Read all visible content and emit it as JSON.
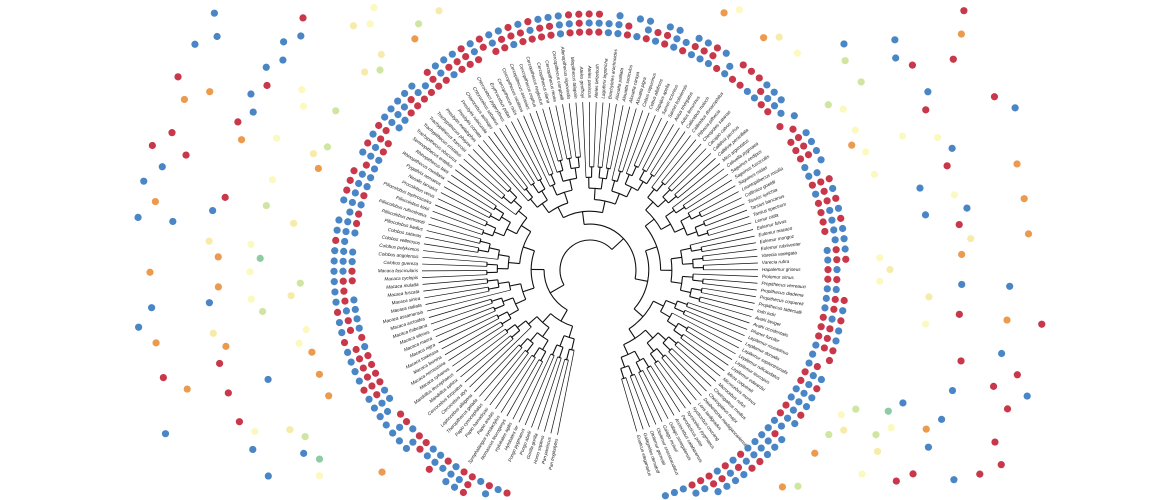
{
  "figure": {
    "title": "",
    "palette": {
      "red": "#c8374a",
      "blue": "#4a86c5",
      "orange": "#ec9a4e",
      "cream": "#fbf9bf",
      "lightgreen": "#cfe6a0",
      "green": "#8fcba3",
      "yellow": "#f7ebaa"
    }
  },
  "tree": {
    "tips": [
      {
        "label": "Pan troglodytes"
      },
      {
        "label": "Pan paniscus"
      },
      {
        "label": "Homo sapiens"
      },
      {
        "label": "Gorilla gorilla"
      },
      {
        "label": "Pongo abelii"
      },
      {
        "label": "Pongo pygmaeus"
      },
      {
        "label": "Hylobates lar"
      },
      {
        "label": "Hylobates agilis"
      },
      {
        "label": "Nomascus leucogenys"
      },
      {
        "label": "Symphalangus syndactylus"
      },
      {
        "label": "Papio anubis"
      },
      {
        "label": "Papio hamadryas"
      },
      {
        "label": "Papio cynocephalus"
      },
      {
        "label": "Theropithecus gelada"
      },
      {
        "label": "Lophocebus albigena"
      },
      {
        "label": "Cercocebus atys"
      },
      {
        "label": "Cercocebus torquatus"
      },
      {
        "label": "Mandrillus sphinx"
      },
      {
        "label": "Mandrillus leucophaeus"
      },
      {
        "label": "Macaca sylvanus"
      },
      {
        "label": "Macaca nemestrina"
      },
      {
        "label": "Macaca leonina"
      },
      {
        "label": "Macaca tonkeana"
      },
      {
        "label": "Macaca nigra"
      },
      {
        "label": "Macaca maura"
      },
      {
        "label": "Macaca silenus"
      },
      {
        "label": "Macaca thibetana"
      },
      {
        "label": "Macaca arctoides"
      },
      {
        "label": "Macaca assamensis"
      },
      {
        "label": "Macaca radiata"
      },
      {
        "label": "Macaca sinica"
      },
      {
        "label": "Macaca fuscata"
      },
      {
        "label": "Macaca mulatta"
      },
      {
        "label": "Macaca cyclopis"
      },
      {
        "label": "Macaca fascicularis"
      },
      {
        "label": "Colobus guereza"
      },
      {
        "label": "Colobus angolensis"
      },
      {
        "label": "Colobus polykomos"
      },
      {
        "label": "Colobus vellerosus"
      },
      {
        "label": "Colobus satanas"
      },
      {
        "label": "Piliocolobus badius"
      },
      {
        "label": "Piliocolobus pennantii"
      },
      {
        "label": "Piliocolobus rufomitratus"
      },
      {
        "label": "Piliocolobus kirkii"
      },
      {
        "label": "Piliocolobus tephrosceles"
      },
      {
        "label": "Procolobus verus"
      },
      {
        "label": "Nasalis larvatus"
      },
      {
        "label": "Pygathrix nemaeus"
      },
      {
        "label": "Rhinopithecus roxellana"
      },
      {
        "label": "Rhinopithecus bieti"
      },
      {
        "label": "Semnopithecus entellus"
      },
      {
        "label": "Trachypithecus obscurus"
      },
      {
        "label": "Trachypithecus cristatus"
      },
      {
        "label": "Trachypithecus francoisi"
      },
      {
        "label": "Trachypithecus phayrei"
      },
      {
        "label": "Presbytis melalophos"
      },
      {
        "label": "Presbytis comata"
      },
      {
        "label": "Presbytis rubicunda"
      },
      {
        "label": "Chlorocebus aethiops"
      },
      {
        "label": "Chlorocebus sabaeus"
      },
      {
        "label": "Chlorocebus pygerythrus"
      },
      {
        "label": "Erythrocebus patas"
      },
      {
        "label": "Cercopithecus mitis"
      },
      {
        "label": "Cercopithecus nictitans"
      },
      {
        "label": "Cercopithecus ascanius"
      },
      {
        "label": "Cercopithecus cephus"
      },
      {
        "label": "Cercopithecus neglectus"
      },
      {
        "label": "Cercopithecus diana"
      },
      {
        "label": "Cercopithecus mona"
      },
      {
        "label": "Cercopithecus campbelli"
      },
      {
        "label": "Allenopithecus nigroviridis"
      },
      {
        "label": "Miopithecus talapoin"
      },
      {
        "label": "Ateles geoffroyi"
      },
      {
        "label": "Ateles paniscus"
      },
      {
        "label": "Ateles belzebuth"
      },
      {
        "label": "Lagothrix lagotricha"
      },
      {
        "label": "Brachyteles arachnoides"
      },
      {
        "label": "Alouatta palliata"
      },
      {
        "label": "Alouatta seniculus"
      },
      {
        "label": "Alouatta caraya"
      },
      {
        "label": "Alouatta pigra"
      },
      {
        "label": "Cebus capucinus"
      },
      {
        "label": "Cebus albifrons"
      },
      {
        "label": "Sapajus apella"
      },
      {
        "label": "Saimiri sciureus"
      },
      {
        "label": "Saimiri boliviensis"
      },
      {
        "label": "Aotus trivirgatus"
      },
      {
        "label": "Aotus lemurinus"
      },
      {
        "label": "Callicebus moloch"
      },
      {
        "label": "Callicebus donacophilus"
      },
      {
        "label": "Pithecia pithecia"
      },
      {
        "label": "Chiropotes satanas"
      },
      {
        "label": "Cacajao calvus"
      },
      {
        "label": "Callithrix jacchus"
      },
      {
        "label": "Callithrix penicillata"
      },
      {
        "label": "Mico argentatus"
      },
      {
        "label": "Cebuella pygmaea"
      },
      {
        "label": "Saguinus oedipus"
      },
      {
        "label": "Saguinus fuscicollis"
      },
      {
        "label": "Saguinus midas"
      },
      {
        "label": "Leontopithecus rosalia"
      },
      {
        "label": "Callimico goeldii"
      },
      {
        "label": "Tarsius syrichta"
      },
      {
        "label": "Tarsius bancanus"
      },
      {
        "label": "Tarsius spectrum"
      },
      {
        "label": "Lemur catta"
      },
      {
        "label": "Eulemur fulvus"
      },
      {
        "label": "Eulemur macaco"
      },
      {
        "label": "Eulemur mongoz"
      },
      {
        "label": "Eulemur rubriventer"
      },
      {
        "label": "Varecia variegata"
      },
      {
        "label": "Varecia rubra"
      },
      {
        "label": "Hapalemur griseus"
      },
      {
        "label": "Prolemur simus"
      },
      {
        "label": "Propithecus verreauxi"
      },
      {
        "label": "Propithecus diadema"
      },
      {
        "label": "Propithecus coquereli"
      },
      {
        "label": "Propithecus tattersalli"
      },
      {
        "label": "Indri indri"
      },
      {
        "label": "Avahi laniger"
      },
      {
        "label": "Avahi occidentalis"
      },
      {
        "label": "Phaner furcifer"
      },
      {
        "label": "Lepilemur mustelinus"
      },
      {
        "label": "Lepilemur dorsalis"
      },
      {
        "label": "Lepilemur septentrionalis"
      },
      {
        "label": "Lepilemur ruficaudatus"
      },
      {
        "label": "Lepilemur leucopus"
      },
      {
        "label": "Lepilemur edwardsi"
      },
      {
        "label": "Mirza coquereli"
      },
      {
        "label": "Microcebus murinus"
      },
      {
        "label": "Microcebus rufus"
      },
      {
        "label": "Cheirogaleus medius"
      },
      {
        "label": "Cheirogaleus major"
      },
      {
        "label": "Daubentonia madagascariensis"
      },
      {
        "label": "Loris tardigradus"
      },
      {
        "label": "Nycticebus coucang"
      },
      {
        "label": "Nycticebus pygmaeus"
      },
      {
        "label": "Perodicticus potto"
      },
      {
        "label": "Arctocebus calabarensis"
      },
      {
        "label": "Galago senegalensis"
      },
      {
        "label": "Galago moholi"
      },
      {
        "label": "Otolemur crassicaudatus"
      },
      {
        "label": "Otolemur garnettii"
      },
      {
        "label": "Galagoides demidoff"
      },
      {
        "label": "Euoticus elegantulus"
      }
    ]
  }
}
